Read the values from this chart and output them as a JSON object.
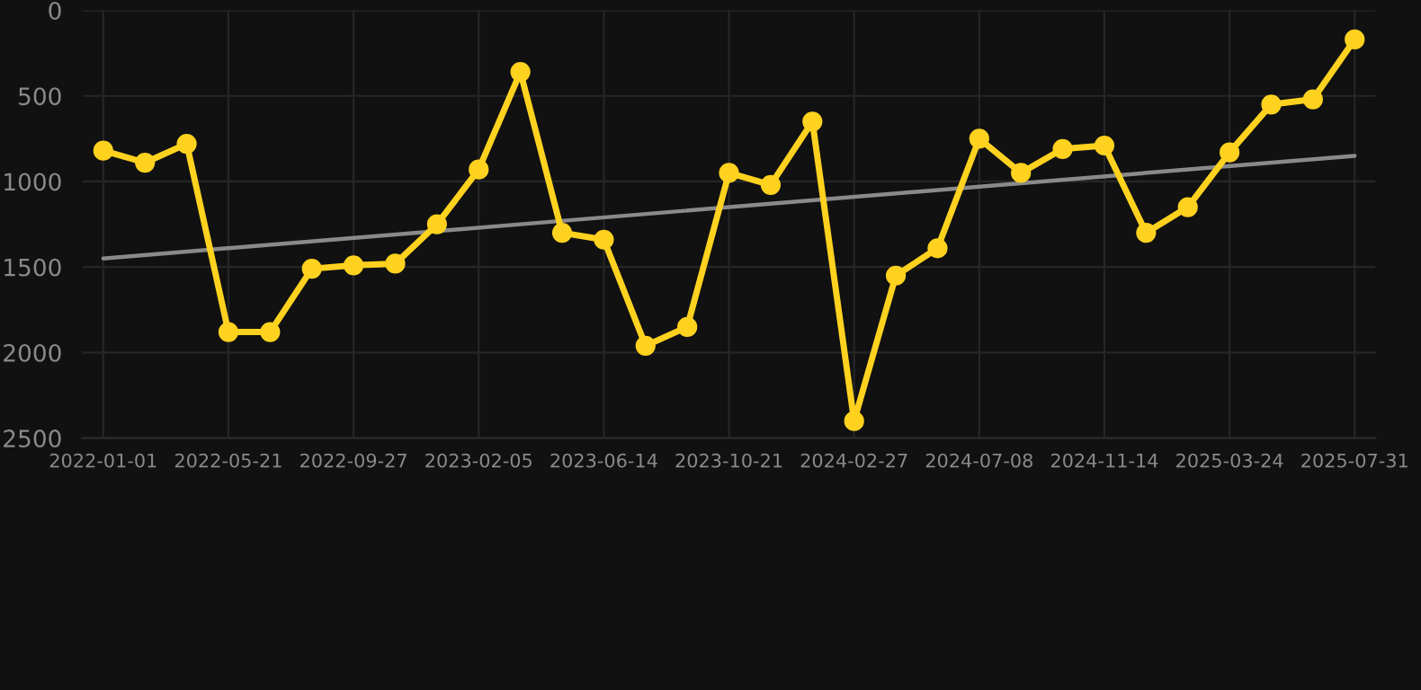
{
  "chart_data": {
    "type": "line",
    "categories": [
      "2022-01-01",
      null,
      null,
      "2022-05-21",
      null,
      null,
      "2022-09-27",
      null,
      null,
      "2023-02-05",
      null,
      null,
      "2023-06-14",
      null,
      null,
      "2023-10-21",
      null,
      null,
      "2024-02-27",
      null,
      null,
      "2024-07-08",
      null,
      null,
      "2024-11-14",
      null,
      null,
      "2025-03-24",
      null,
      null,
      "2025-07-31"
    ],
    "series": [
      {
        "color": "#ffd21f",
        "marker": "circle",
        "values": [
          820,
          890,
          780,
          1880,
          1880,
          1510,
          1490,
          1480,
          1250,
          930,
          360,
          1300,
          1340,
          1960,
          1850,
          950,
          1020,
          650,
          2400,
          1550,
          1390,
          750,
          950,
          810,
          790,
          1300,
          1150,
          830,
          550,
          520,
          170
        ]
      },
      {
        "color": "#8a8a8a",
        "marker": "none",
        "values": [
          1450,
          null,
          null,
          null,
          null,
          null,
          null,
          null,
          null,
          null,
          null,
          null,
          null,
          null,
          null,
          null,
          null,
          null,
          null,
          null,
          null,
          null,
          null,
          null,
          null,
          null,
          null,
          null,
          null,
          null,
          850
        ]
      }
    ],
    "ylim": [
      2500,
      0
    ],
    "yticks": [
      0,
      500,
      1000,
      1500,
      2000,
      2500
    ],
    "grid": true
  }
}
